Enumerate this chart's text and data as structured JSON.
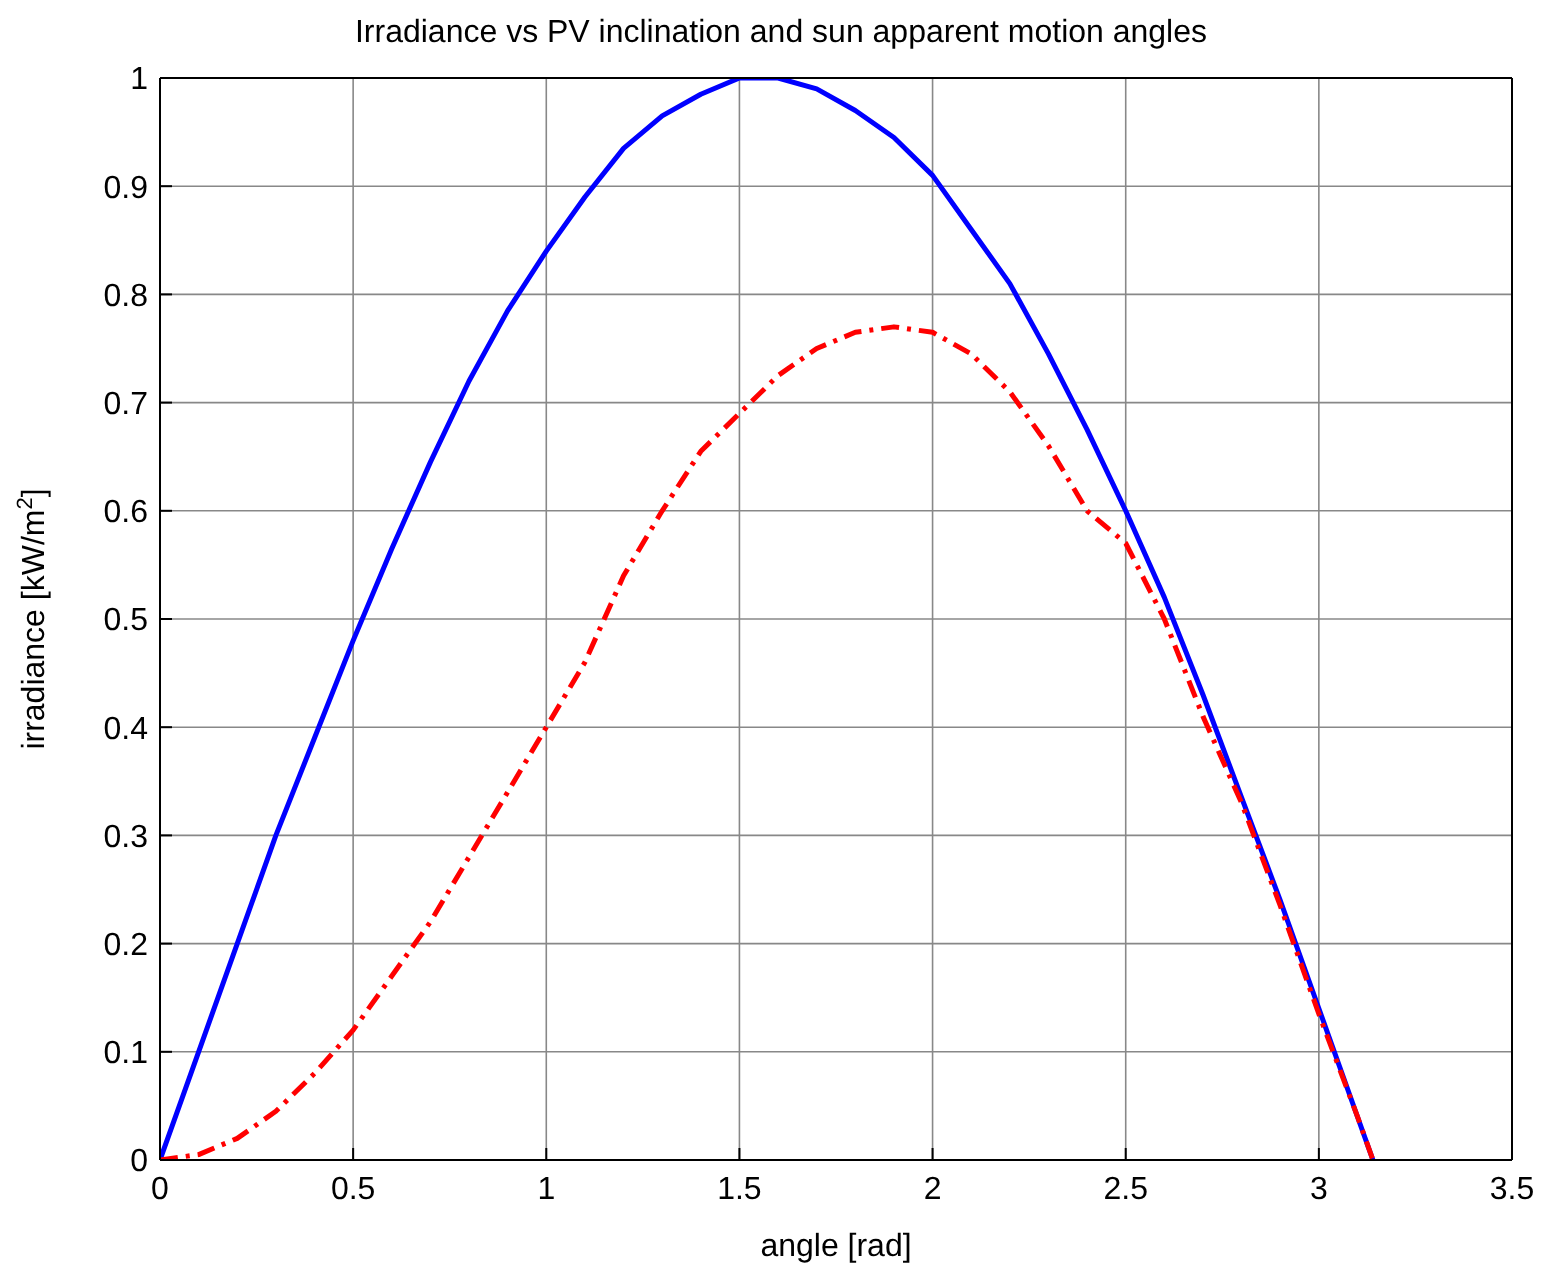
{
  "chart_data": {
    "type": "line",
    "title": "Irradiance vs PV inclination and sun apparent motion angles",
    "xlabel": "angle [rad]",
    "ylabel": "irradiance [kW/m$^{2}$]",
    "xlim": [
      0,
      3.5
    ],
    "xticks": [
      0,
      0.5,
      1,
      1.5,
      2,
      2.5,
      3,
      3.5
    ],
    "ylim": [
      0,
      1
    ],
    "yticks": [
      0,
      0.1,
      0.2,
      0.3,
      0.4,
      0.5,
      0.6,
      0.7,
      0.8,
      0.9,
      1
    ],
    "grid": true,
    "marker": "none",
    "series": [
      {
        "color": "#0000ff",
        "line_style": "solid",
        "x": [
          0,
          0.1,
          0.2,
          0.3,
          0.4,
          0.5,
          0.6,
          0.7,
          0.8,
          0.9,
          1,
          1.1,
          1.2,
          1.3,
          1.4,
          1.5,
          1.6,
          1.7,
          1.8,
          1.9,
          2,
          2.1,
          2.2,
          2.3,
          2.4,
          2.5,
          2.6,
          2.7,
          2.8,
          2.9,
          3,
          3.1,
          3.14
        ],
        "values": [
          0,
          0.1,
          0.2,
          0.3,
          0.39,
          0.48,
          0.565,
          0.645,
          0.72,
          0.785,
          0.84,
          0.89,
          0.935,
          0.965,
          0.985,
          1,
          1,
          0.99,
          0.97,
          0.945,
          0.91,
          0.86,
          0.81,
          0.745,
          0.675,
          0.6,
          0.52,
          0.43,
          0.335,
          0.24,
          0.14,
          0.04,
          0
        ]
      },
      {
        "color": "#ff0000",
        "line_style": "dashed",
        "x": [
          0,
          0.1,
          0.2,
          0.3,
          0.4,
          0.5,
          0.6,
          0.7,
          0.8,
          0.9,
          1,
          1.1,
          1.2,
          1.3,
          1.4,
          1.5,
          1.6,
          1.7,
          1.8,
          1.9,
          2,
          2.1,
          2.2,
          2.3,
          2.4,
          2.5,
          2.6,
          2.7,
          2.8,
          2.9,
          3,
          3.1,
          3.14
        ],
        "values": [
          0,
          0.005,
          0.02,
          0.045,
          0.08,
          0.12,
          0.17,
          0.22,
          0.28,
          0.34,
          0.4,
          0.46,
          0.54,
          0.6,
          0.655,
          0.69,
          0.725,
          0.75,
          0.765,
          0.77,
          0.765,
          0.745,
          0.71,
          0.66,
          0.6,
          0.57,
          0.5,
          0.41,
          0.33,
          0.235,
          0.135,
          0.04,
          0
        ]
      }
    ]
  }
}
